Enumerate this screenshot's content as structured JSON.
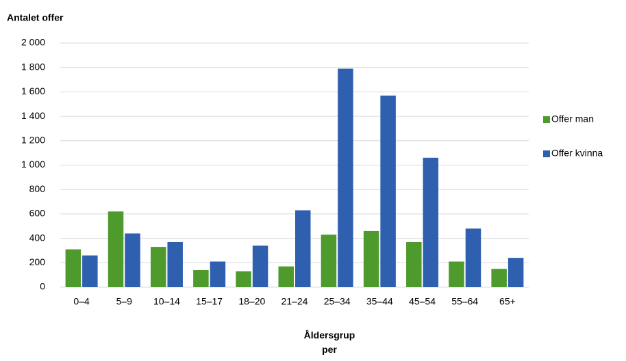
{
  "chart_data": {
    "type": "bar",
    "title": "Antalet offer",
    "x_label": "Åldersgrupper",
    "categories": [
      "0–4",
      "5–9",
      "10–14",
      "15–17",
      "18–20",
      "21–24",
      "25–34",
      "35–44",
      "45–54",
      "55–64",
      "65+"
    ],
    "series": [
      {
        "name": "Offer man",
        "color": "#4f9a2d",
        "values": [
          310,
          620,
          330,
          140,
          130,
          170,
          430,
          460,
          370,
          210,
          150
        ]
      },
      {
        "name": "Offer kvinna",
        "color": "#2f5faf",
        "values": [
          260,
          440,
          370,
          210,
          340,
          630,
          1790,
          1570,
          1060,
          480,
          240
        ]
      }
    ],
    "ylim": [
      0,
      2000
    ],
    "yticks": [
      0,
      200,
      400,
      600,
      800,
      {
        "value": 1000,
        "label": "1 000"
      },
      {
        "value": 1200,
        "label": "1 200"
      },
      {
        "value": 1400,
        "label": "1 400"
      },
      {
        "value": 1600,
        "label": "1 600"
      },
      {
        "value": 1800,
        "label": "1 800"
      },
      {
        "value": 2000,
        "label": "2 000"
      }
    ],
    "grid": true,
    "legend": "right"
  }
}
